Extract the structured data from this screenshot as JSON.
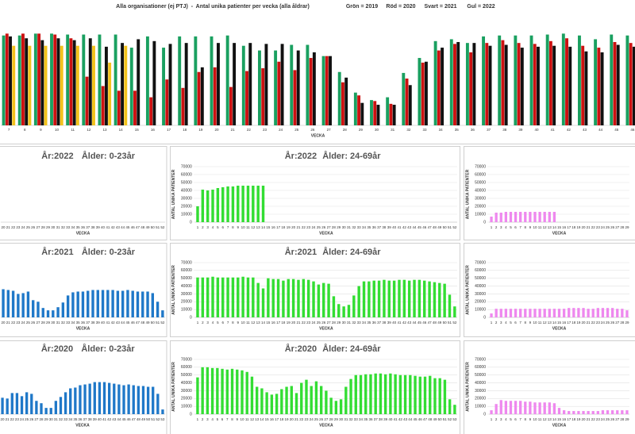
{
  "chart_data": [
    {
      "type": "grouped_bar",
      "title": "Alla organisationer (ej PTJ)  -  Antal unika patienter per vecka (alla åldrar)",
      "x_label": "VECKA",
      "categories": [
        7,
        8,
        9,
        10,
        11,
        12,
        13,
        14,
        15,
        16,
        17,
        18,
        19,
        20,
        21,
        22,
        23,
        24,
        25,
        26,
        27,
        28,
        29,
        30,
        31,
        32,
        33,
        34,
        35,
        36,
        37,
        38,
        39,
        40,
        41,
        42,
        43,
        44,
        45,
        46
      ],
      "ylim": [
        0,
        100
      ],
      "grid": true,
      "series": [
        {
          "name": "Grön = 2019",
          "color": "#1aa060",
          "values": [
            96,
            96,
            98,
            98,
            97,
            97,
            97,
            97,
            83,
            95,
            83,
            95,
            95,
            95,
            96,
            85,
            80,
            80,
            86,
            86,
            74,
            57,
            35,
            27,
            30,
            56,
            72,
            90,
            92,
            88,
            95,
            96,
            96,
            96,
            97,
            98,
            96,
            92,
            97,
            96
          ]
        },
        {
          "name": "Röd = 2020",
          "color": "#cc1111",
          "values": [
            98,
            98,
            98,
            97,
            93,
            52,
            42,
            37,
            37,
            30,
            49,
            40,
            57,
            62,
            41,
            58,
            61,
            68,
            59,
            72,
            74,
            46,
            32,
            26,
            23,
            50,
            67,
            80,
            87,
            78,
            88,
            91,
            88,
            87,
            90,
            93,
            85,
            83,
            89,
            88
          ]
        },
        {
          "name": "Svart = 2021",
          "color": "#111111",
          "values": [
            95,
            93,
            91,
            93,
            91,
            93,
            84,
            88,
            92,
            90,
            87,
            88,
            62,
            88,
            88,
            88,
            87,
            87,
            80,
            78,
            74,
            51,
            24,
            22,
            22,
            43,
            68,
            83,
            89,
            88,
            85,
            86,
            83,
            84,
            85,
            84,
            79,
            78,
            86,
            84
          ]
        },
        {
          "name": "Gul = 2022",
          "color": "#f2c21b",
          "values": [
            85,
            85,
            85,
            85,
            85,
            85,
            67,
            85,
            null,
            null,
            null,
            null,
            null,
            null,
            null,
            null,
            null,
            null,
            null,
            null,
            null,
            null,
            null,
            null,
            null,
            null,
            null,
            null,
            null,
            null,
            null,
            null,
            null,
            null,
            null,
            null,
            null,
            null,
            null,
            null
          ]
        }
      ]
    },
    {
      "type": "bar",
      "title": "År:2022",
      "subtitle": "Ålder: 0-23år",
      "x_label": "VECKA",
      "color": "#1f78c8",
      "ylim": [
        0,
        70000
      ],
      "grid": true,
      "categories": [
        20,
        21,
        22,
        23,
        24,
        25,
        26,
        27,
        28,
        29,
        30,
        31,
        32,
        33,
        34,
        35,
        36,
        37,
        38,
        39,
        40,
        41,
        42,
        43,
        44,
        45,
        46,
        47,
        48,
        49,
        50,
        51,
        52
      ],
      "values": [
        null,
        null,
        null,
        null,
        null,
        null,
        null,
        null,
        null,
        null,
        null,
        null,
        null,
        null,
        null,
        null,
        null,
        null,
        null,
        null,
        null,
        null,
        null,
        null,
        null,
        null,
        null,
        null,
        null,
        null,
        null,
        null,
        null
      ]
    },
    {
      "type": "bar",
      "title": "År:2022",
      "subtitle": "Ålder: 24-69år",
      "x_label": "VECKA",
      "y_label": "ANTAL UNIKA PATIENTER",
      "color": "#33dd33",
      "ylim": [
        0,
        70000
      ],
      "yticks": [
        0,
        10000,
        20000,
        30000,
        40000,
        50000,
        60000,
        70000
      ],
      "grid": true,
      "categories": [
        1,
        2,
        3,
        4,
        5,
        6,
        7,
        8,
        9,
        10,
        11,
        12,
        13,
        14,
        15,
        16,
        17,
        18,
        19,
        20,
        21,
        22,
        23,
        24,
        25,
        26,
        27,
        28,
        29,
        30,
        31,
        32,
        33,
        34,
        35,
        36,
        37,
        38,
        39,
        40,
        41,
        42,
        43,
        44,
        45,
        46,
        47,
        48,
        49,
        50,
        51,
        52
      ],
      "values": [
        20000,
        41000,
        40000,
        41000,
        43000,
        44000,
        45000,
        45000,
        46000,
        46000,
        46000,
        46000,
        46000,
        46000,
        null,
        null,
        null,
        null,
        null,
        null,
        null,
        null,
        null,
        null,
        null,
        null,
        null,
        null,
        null,
        null,
        null,
        null,
        null,
        null,
        null,
        null,
        null,
        null,
        null,
        null,
        null,
        null,
        null,
        null,
        null,
        null,
        null,
        null,
        null,
        null,
        null,
        null
      ]
    },
    {
      "type": "bar",
      "x_label": "VECKA",
      "y_label": "ANTAL UNIKA PATIENTER",
      "color": "#ee88ee",
      "ylim": [
        0,
        70000
      ],
      "yticks": [
        0,
        10000,
        20000,
        30000,
        40000,
        50000,
        60000,
        70000
      ],
      "grid": true,
      "categories": [
        1,
        2,
        3,
        4,
        5,
        6,
        7,
        8,
        9,
        10,
        11,
        12,
        13,
        14,
        15,
        16,
        17,
        18,
        19,
        20,
        21,
        22,
        23,
        24,
        25,
        26,
        27,
        28,
        29
      ],
      "values": [
        7000,
        12000,
        12000,
        13000,
        13000,
        13000,
        13000,
        13000,
        13000,
        13000,
        13000,
        13000,
        13000,
        13000,
        null,
        null,
        null,
        null,
        null,
        null,
        null,
        null,
        null,
        null,
        null,
        null,
        null,
        null,
        null
      ]
    },
    {
      "type": "bar",
      "title": "År:2021",
      "subtitle": "Ålder: 0-23år",
      "x_label": "VECKA",
      "color": "#1f78c8",
      "ylim": [
        0,
        70000
      ],
      "grid": true,
      "categories": [
        20,
        21,
        22,
        23,
        24,
        25,
        26,
        27,
        28,
        29,
        30,
        31,
        32,
        33,
        34,
        35,
        36,
        37,
        38,
        39,
        40,
        41,
        42,
        43,
        44,
        45,
        46,
        47,
        48,
        49,
        50,
        51,
        52
      ],
      "values": [
        36000,
        35000,
        34000,
        30000,
        31000,
        33000,
        22000,
        20000,
        12000,
        9000,
        9000,
        13000,
        19000,
        28000,
        32000,
        33000,
        33000,
        34000,
        35000,
        35000,
        35000,
        35000,
        35000,
        34000,
        34000,
        35000,
        34000,
        33000,
        33000,
        33000,
        31000,
        20000,
        9000
      ]
    },
    {
      "type": "bar",
      "title": "År:2021",
      "subtitle": "Ålder: 24-69år",
      "x_label": "VECKA",
      "y_label": "ANTAL UNIKA PATIENTER",
      "color": "#33dd33",
      "ylim": [
        0,
        70000
      ],
      "yticks": [
        0,
        10000,
        20000,
        30000,
        40000,
        50000,
        60000,
        70000
      ],
      "grid": true,
      "categories": [
        1,
        2,
        3,
        4,
        5,
        6,
        7,
        8,
        9,
        10,
        11,
        12,
        13,
        14,
        15,
        16,
        17,
        18,
        19,
        20,
        21,
        22,
        23,
        24,
        25,
        26,
        27,
        28,
        29,
        30,
        31,
        32,
        33,
        34,
        35,
        36,
        37,
        38,
        39,
        40,
        41,
        42,
        43,
        44,
        45,
        46,
        47,
        48,
        49,
        50,
        51,
        52
      ],
      "values": [
        51000,
        51000,
        51000,
        52000,
        51000,
        51000,
        51000,
        51000,
        51000,
        52000,
        51000,
        51000,
        44000,
        37000,
        50000,
        49000,
        49000,
        47000,
        49000,
        49000,
        48000,
        49000,
        48000,
        46000,
        42000,
        44000,
        43000,
        27000,
        17000,
        14000,
        16000,
        28000,
        40000,
        46000,
        46000,
        47000,
        47000,
        48000,
        47000,
        47000,
        48000,
        48000,
        47000,
        48000,
        48000,
        47000,
        46000,
        45000,
        44000,
        43000,
        29000,
        14000
      ]
    },
    {
      "type": "bar",
      "x_label": "VECKA",
      "y_label": "ANTAL UNIKA PATIENTER",
      "color": "#ee88ee",
      "ylim": [
        0,
        70000
      ],
      "yticks": [
        0,
        10000,
        20000,
        30000,
        40000,
        50000,
        60000,
        70000
      ],
      "grid": true,
      "categories": [
        1,
        2,
        3,
        4,
        5,
        6,
        7,
        8,
        9,
        10,
        11,
        12,
        13,
        14,
        15,
        16,
        17,
        18,
        19,
        20,
        21,
        22,
        23,
        24,
        25,
        26,
        27,
        28,
        29
      ],
      "values": [
        5000,
        11000,
        11000,
        11000,
        11000,
        11000,
        11000,
        11000,
        11000,
        11000,
        11000,
        11000,
        11000,
        11000,
        11000,
        11000,
        12000,
        12000,
        12000,
        12000,
        11000,
        11000,
        12000,
        12000,
        12000,
        12000,
        11000,
        11000,
        9000
      ]
    },
    {
      "type": "bar",
      "title": "År:2020",
      "subtitle": "Ålder: 0-23år",
      "x_label": "VECKA",
      "color": "#1f78c8",
      "ylim": [
        0,
        70000
      ],
      "grid": true,
      "categories": [
        20,
        21,
        22,
        23,
        24,
        25,
        26,
        27,
        28,
        29,
        30,
        31,
        32,
        33,
        34,
        35,
        36,
        37,
        38,
        39,
        40,
        41,
        42,
        43,
        44,
        45,
        46,
        47,
        48,
        49,
        50,
        51,
        52,
        53
      ],
      "values": [
        21000,
        20000,
        27000,
        27000,
        23000,
        28000,
        26000,
        17000,
        14000,
        8000,
        8000,
        17000,
        22000,
        28000,
        33000,
        34000,
        37000,
        38000,
        39000,
        41000,
        41000,
        41000,
        40000,
        39000,
        38000,
        37000,
        38000,
        37000,
        36000,
        36000,
        35000,
        35000,
        26000,
        6000
      ]
    },
    {
      "type": "bar",
      "title": "År:2020",
      "subtitle": "Ålder: 24-69år",
      "x_label": "VECKA",
      "y_label": "ANTAL UNIKA PATIENTER",
      "color": "#33dd33",
      "ylim": [
        0,
        70000
      ],
      "yticks": [
        0,
        10000,
        20000,
        30000,
        40000,
        50000,
        60000,
        70000
      ],
      "grid": true,
      "categories": [
        1,
        2,
        3,
        4,
        5,
        6,
        7,
        8,
        9,
        10,
        11,
        12,
        13,
        14,
        15,
        16,
        17,
        18,
        19,
        20,
        21,
        22,
        23,
        24,
        25,
        26,
        27,
        28,
        29,
        30,
        31,
        32,
        33,
        34,
        35,
        36,
        37,
        38,
        39,
        40,
        41,
        42,
        43,
        44,
        45,
        46,
        47,
        48,
        49,
        50,
        51,
        52,
        53
      ],
      "values": [
        47000,
        60000,
        60000,
        59000,
        59000,
        58000,
        57000,
        58000,
        57000,
        56000,
        54000,
        48000,
        35000,
        33000,
        28000,
        25000,
        26000,
        32000,
        35000,
        36000,
        27000,
        40000,
        44000,
        36000,
        42000,
        36000,
        30000,
        21000,
        17000,
        19000,
        35000,
        45000,
        50000,
        50000,
        51000,
        51000,
        52000,
        52000,
        51000,
        52000,
        51000,
        50000,
        50000,
        50000,
        49000,
        48000,
        48000,
        49000,
        46000,
        46000,
        44000,
        19000,
        12000
      ]
    },
    {
      "type": "bar",
      "x_label": "VECKA",
      "y_label": "ANTAL UNIKA PATIENTER",
      "color": "#ee88ee",
      "ylim": [
        0,
        70000
      ],
      "yticks": [
        0,
        10000,
        20000,
        30000,
        40000,
        50000,
        60000,
        70000
      ],
      "grid": true,
      "categories": [
        1,
        2,
        3,
        4,
        5,
        6,
        7,
        8,
        9,
        10,
        11,
        12,
        13,
        14,
        15,
        16,
        17,
        18,
        19,
        20,
        21,
        22,
        23,
        24,
        25,
        26,
        27,
        28,
        29
      ],
      "values": [
        5000,
        13000,
        18000,
        17000,
        17000,
        17000,
        17000,
        16000,
        16000,
        15000,
        15000,
        15000,
        15000,
        14000,
        8000,
        5000,
        4000,
        4000,
        4000,
        4000,
        4000,
        4000,
        4000,
        5000,
        5000,
        5000,
        5000,
        5000,
        5000
      ]
    }
  ]
}
